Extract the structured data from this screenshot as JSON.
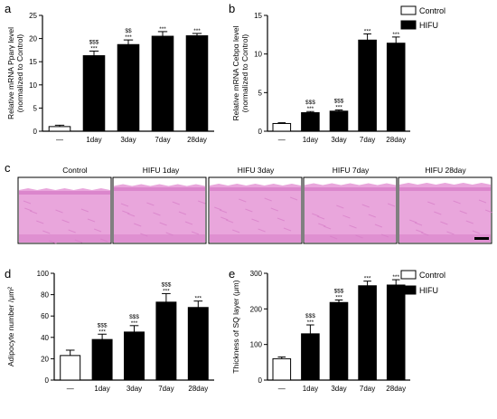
{
  "colors": {
    "control_fill": "#ffffff",
    "hifu_fill": "#000000",
    "tissue": "#e9a6dc",
    "tissue_dark": "#d77ec8"
  },
  "panels": {
    "a": "a",
    "b": "b",
    "c": "c",
    "d": "d",
    "e": "e"
  },
  "legend_top": [
    {
      "label": "Control",
      "fill": "#ffffff"
    },
    {
      "label": "HIFU",
      "fill": "#000000"
    }
  ],
  "legend_bottom": [
    {
      "label": "Control",
      "fill": "#ffffff"
    },
    {
      "label": "HIFU",
      "fill": "#000000"
    }
  ],
  "histology": {
    "labels": [
      "Control",
      "HIFU 1day",
      "HIFU 3day",
      "HIFU 7day",
      "HIFU 28day"
    ]
  },
  "chart_data": [
    {
      "id": "a",
      "type": "bar",
      "categories": [
        "—",
        "1day",
        "3day",
        "7day",
        "28day"
      ],
      "values": [
        1.0,
        16.3,
        18.7,
        20.5,
        20.6
      ],
      "errors": [
        0.3,
        1.0,
        1.0,
        1.0,
        0.5
      ],
      "ylabel_line1": "Relative mRNA Pparγ level",
      "ylabel_line2": "(normalized to Control)",
      "ylim": [
        0,
        25
      ],
      "yticks": [
        0,
        5,
        10,
        15,
        20,
        25
      ],
      "sig_dollar": [
        "",
        "$$$",
        "$$",
        "",
        ""
      ],
      "sig_star": [
        "",
        "***",
        "***",
        "***",
        "***"
      ]
    },
    {
      "id": "b",
      "type": "bar",
      "categories": [
        "—",
        "1day",
        "3day",
        "7day",
        "28day"
      ],
      "values": [
        1.0,
        2.4,
        2.6,
        11.8,
        11.4
      ],
      "errors": [
        0.1,
        0.15,
        0.15,
        0.8,
        0.8
      ],
      "ylabel_line1": "Relative mRNA Cebpα level",
      "ylabel_line2": "(normalized to Control)",
      "ylim": [
        0,
        15
      ],
      "yticks": [
        0,
        5,
        10,
        15
      ],
      "sig_dollar": [
        "",
        "$$$",
        "$$$",
        "",
        ""
      ],
      "sig_star": [
        "",
        "***",
        "***",
        "***",
        "***"
      ]
    },
    {
      "id": "d",
      "type": "bar",
      "categories": [
        "—",
        "1day",
        "3day",
        "7day",
        "28day"
      ],
      "values": [
        23,
        38,
        45,
        73,
        68
      ],
      "errors": [
        5,
        5,
        6,
        8,
        6
      ],
      "ylabel_line1": "Adipocyte number /μm²",
      "ylabel_line2": "",
      "ylim": [
        0,
        100
      ],
      "yticks": [
        0,
        20,
        40,
        60,
        80,
        100
      ],
      "sig_dollar": [
        "",
        "$$$",
        "$$$",
        "$$$",
        ""
      ],
      "sig_star": [
        "",
        "***",
        "***",
        "***",
        "***"
      ]
    },
    {
      "id": "e",
      "type": "bar",
      "categories": [
        "—",
        "1day",
        "3day",
        "7day",
        "28day"
      ],
      "values": [
        60,
        130,
        218,
        265,
        267
      ],
      "errors": [
        5,
        25,
        7,
        13,
        15
      ],
      "ylabel_line1": "Thickness of SQ layer (μm)",
      "ylabel_line2": "",
      "ylim": [
        0,
        300
      ],
      "yticks": [
        0,
        100,
        200,
        300
      ],
      "sig_dollar": [
        "",
        "$$$",
        "$$$",
        "",
        ""
      ],
      "sig_star": [
        "",
        "***",
        "***",
        "***",
        "***"
      ]
    }
  ]
}
